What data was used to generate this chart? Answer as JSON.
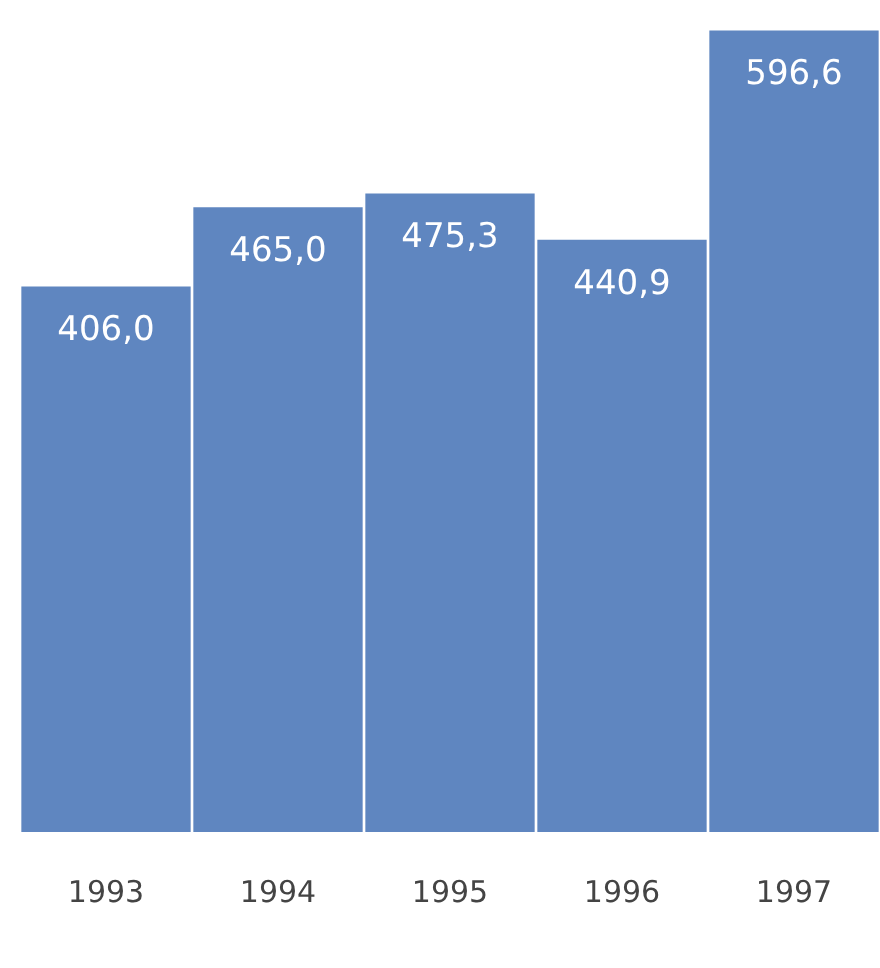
{
  "chart_data": {
    "type": "bar",
    "categories": [
      "1993",
      "1994",
      "1995",
      "1996",
      "1997"
    ],
    "values": [
      406.0,
      465.0,
      475.3,
      440.9,
      596.6
    ],
    "value_labels": [
      "406,0",
      "465,0",
      "475,3",
      "440,9",
      "596,6"
    ],
    "color": "#5f86c0",
    "grid": false,
    "legend": false,
    "tick_labels": "x"
  }
}
